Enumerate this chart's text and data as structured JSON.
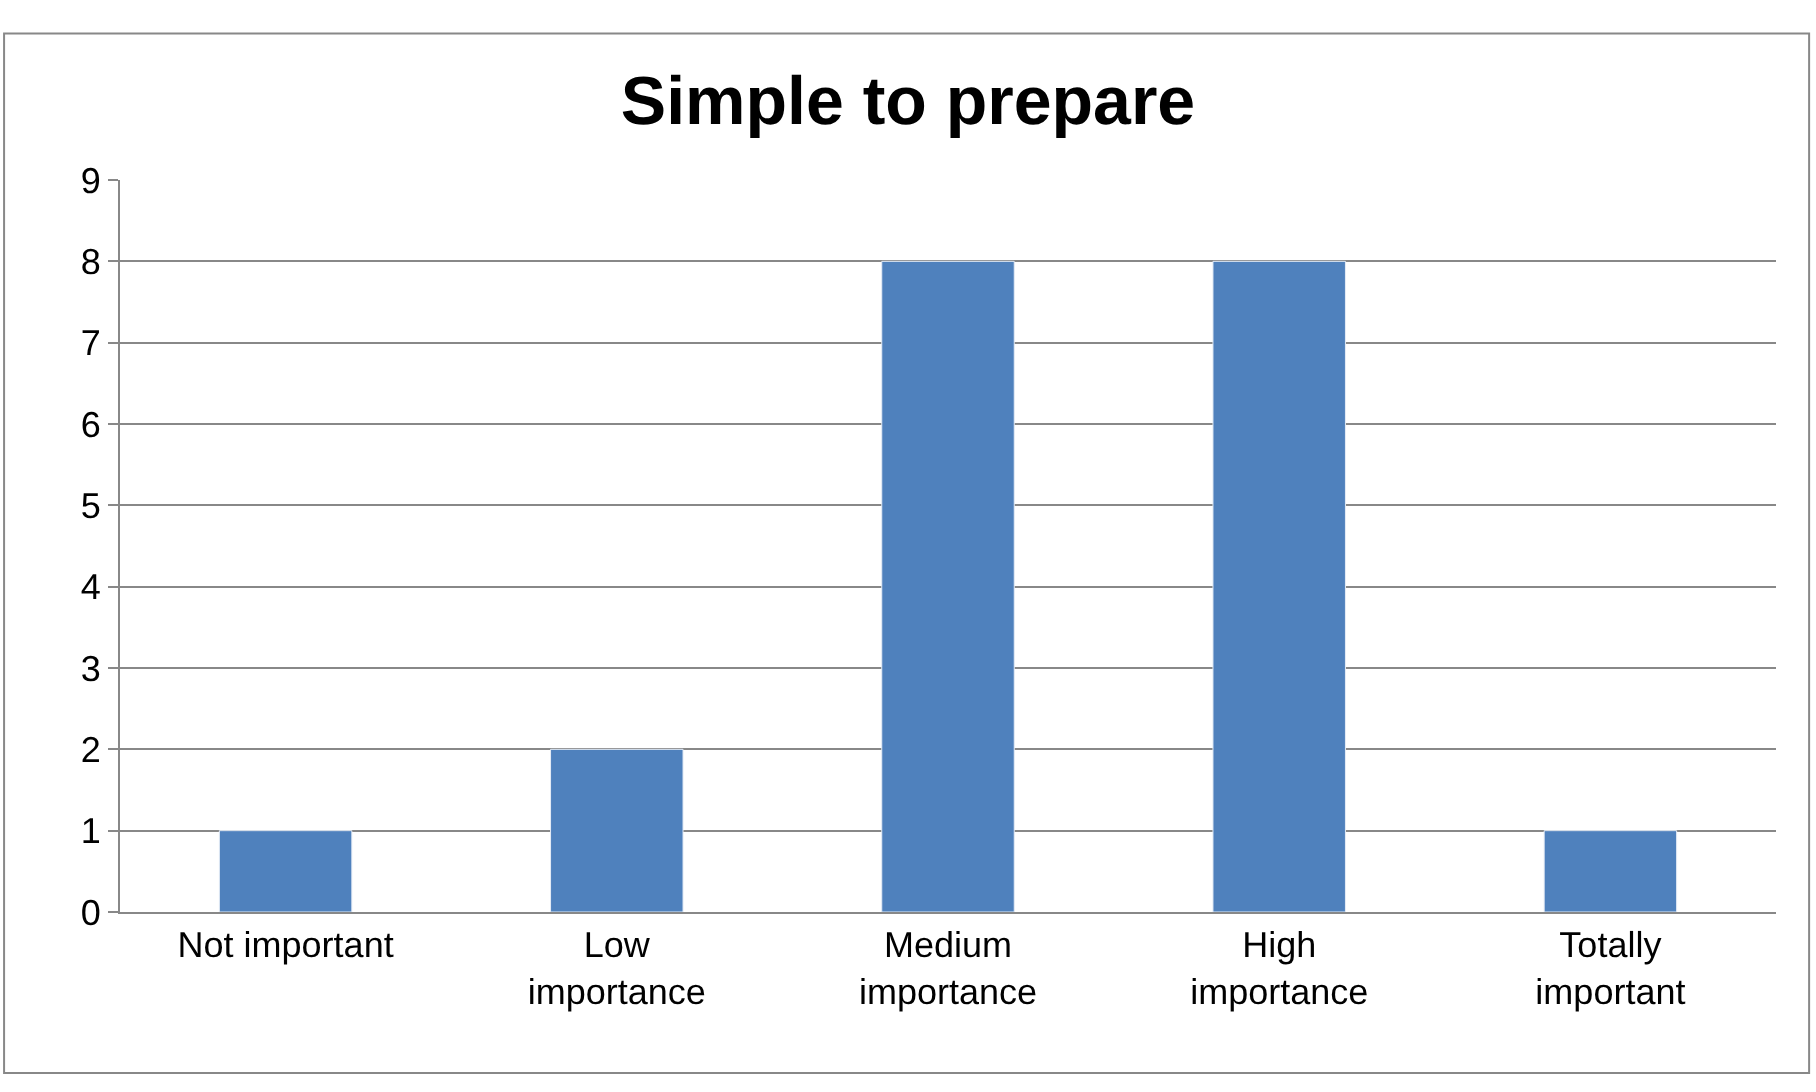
{
  "chart_data": {
    "type": "bar",
    "title": "Simple to prepare",
    "categories": [
      "Not important",
      "Low\nimportance",
      "Medium\nimportance",
      "High\nimportance",
      "Totally\nimportant"
    ],
    "values": [
      1,
      2,
      8,
      8,
      1
    ],
    "color": "#4f81bd",
    "ylim": [
      0,
      9
    ],
    "yticks": [
      0,
      1,
      2,
      3,
      4,
      5,
      6,
      7,
      8,
      9
    ],
    "grid": "y"
  }
}
